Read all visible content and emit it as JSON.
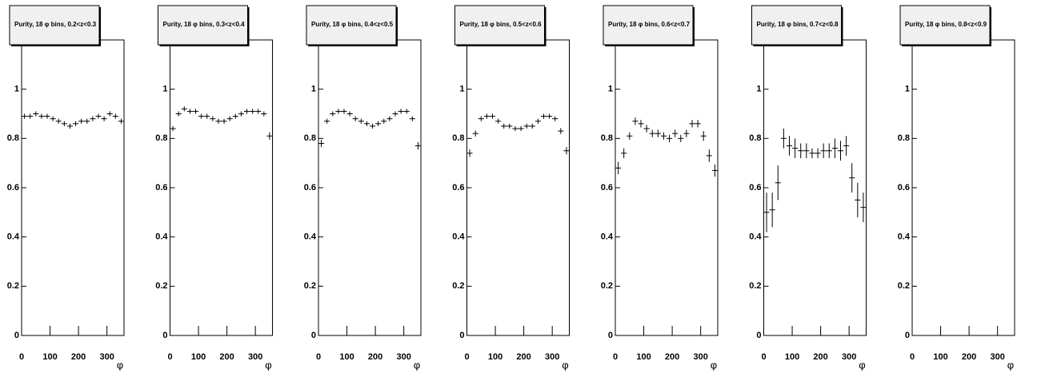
{
  "chart_data": [
    {
      "type": "errorbar",
      "title": "Purity, 18 φ bins, 0.2<z<0.3",
      "xlabel": "φ",
      "x": [
        10,
        30,
        50,
        70,
        90,
        110,
        130,
        150,
        170,
        190,
        210,
        230,
        250,
        270,
        290,
        310,
        330,
        350
      ],
      "values": [
        0.89,
        0.89,
        0.9,
        0.89,
        0.89,
        0.88,
        0.87,
        0.86,
        0.85,
        0.86,
        0.87,
        0.87,
        0.88,
        0.89,
        0.88,
        0.9,
        0.89,
        0.87
      ],
      "errors": [
        0.01,
        0.01,
        0.01,
        0.01,
        0.01,
        0.01,
        0.01,
        0.01,
        0.01,
        0.01,
        0.01,
        0.01,
        0.01,
        0.01,
        0.01,
        0.01,
        0.01,
        0.01
      ],
      "xlim": [
        0,
        360
      ],
      "ylim": [
        0,
        1.2
      ],
      "xticks": [
        0,
        100,
        200,
        300
      ],
      "yticks": [
        0,
        0.2,
        0.4,
        0.6,
        0.8,
        1
      ]
    },
    {
      "type": "errorbar",
      "title": "Purity, 18 φ bins, 0.3<z<0.4",
      "xlabel": "φ",
      "x": [
        10,
        30,
        50,
        70,
        90,
        110,
        130,
        150,
        170,
        190,
        210,
        230,
        250,
        270,
        290,
        310,
        330,
        350
      ],
      "values": [
        0.84,
        0.9,
        0.92,
        0.91,
        0.91,
        0.89,
        0.89,
        0.88,
        0.87,
        0.87,
        0.88,
        0.89,
        0.9,
        0.91,
        0.91,
        0.91,
        0.9,
        0.81
      ],
      "errors": [
        0.01,
        0.01,
        0.01,
        0.01,
        0.01,
        0.01,
        0.01,
        0.01,
        0.01,
        0.01,
        0.01,
        0.01,
        0.01,
        0.01,
        0.01,
        0.01,
        0.01,
        0.015
      ],
      "xlim": [
        0,
        360
      ],
      "ylim": [
        0,
        1.2
      ],
      "xticks": [
        0,
        100,
        200,
        300
      ],
      "yticks": [
        0,
        0.2,
        0.4,
        0.6,
        0.8,
        1
      ]
    },
    {
      "type": "errorbar",
      "title": "Purity, 18 φ bins, 0.4<z<0.5",
      "xlabel": "φ",
      "x": [
        10,
        30,
        50,
        70,
        90,
        110,
        130,
        150,
        170,
        190,
        210,
        230,
        250,
        270,
        290,
        310,
        330,
        350
      ],
      "values": [
        0.78,
        0.87,
        0.9,
        0.91,
        0.91,
        0.9,
        0.88,
        0.87,
        0.86,
        0.85,
        0.86,
        0.87,
        0.88,
        0.9,
        0.91,
        0.91,
        0.88,
        0.77
      ],
      "errors": [
        0.015,
        0.01,
        0.01,
        0.01,
        0.01,
        0.01,
        0.01,
        0.01,
        0.01,
        0.01,
        0.01,
        0.01,
        0.01,
        0.01,
        0.01,
        0.01,
        0.01,
        0.015
      ],
      "xlim": [
        0,
        360
      ],
      "ylim": [
        0,
        1.2
      ],
      "xticks": [
        0,
        100,
        200,
        300
      ],
      "yticks": [
        0,
        0.2,
        0.4,
        0.6,
        0.8,
        1
      ]
    },
    {
      "type": "errorbar",
      "title": "Purity, 18 φ bins, 0.5<z<0.6",
      "xlabel": "φ",
      "x": [
        10,
        30,
        50,
        70,
        90,
        110,
        130,
        150,
        170,
        190,
        210,
        230,
        250,
        270,
        290,
        310,
        330,
        350
      ],
      "values": [
        0.74,
        0.82,
        0.88,
        0.89,
        0.89,
        0.87,
        0.85,
        0.85,
        0.84,
        0.84,
        0.85,
        0.85,
        0.87,
        0.89,
        0.89,
        0.88,
        0.83,
        0.75
      ],
      "errors": [
        0.015,
        0.012,
        0.01,
        0.01,
        0.01,
        0.01,
        0.01,
        0.01,
        0.01,
        0.01,
        0.01,
        0.01,
        0.01,
        0.01,
        0.01,
        0.01,
        0.012,
        0.015
      ],
      "xlim": [
        0,
        360
      ],
      "ylim": [
        0,
        1.2
      ],
      "xticks": [
        0,
        100,
        200,
        300
      ],
      "yticks": [
        0,
        0.2,
        0.4,
        0.6,
        0.8,
        1
      ]
    },
    {
      "type": "errorbar",
      "title": "Purity, 18 φ bins, 0.6<z<0.7",
      "xlabel": "φ",
      "x": [
        10,
        30,
        50,
        70,
        90,
        110,
        130,
        150,
        170,
        190,
        210,
        230,
        250,
        270,
        290,
        310,
        330,
        350
      ],
      "values": [
        0.68,
        0.74,
        0.81,
        0.87,
        0.86,
        0.84,
        0.82,
        0.82,
        0.81,
        0.8,
        0.82,
        0.8,
        0.82,
        0.86,
        0.86,
        0.81,
        0.73,
        0.67
      ],
      "errors": [
        0.025,
        0.02,
        0.015,
        0.015,
        0.015,
        0.015,
        0.015,
        0.015,
        0.015,
        0.015,
        0.015,
        0.015,
        0.015,
        0.015,
        0.015,
        0.02,
        0.025,
        0.025
      ],
      "xlim": [
        0,
        360
      ],
      "ylim": [
        0,
        1.2
      ],
      "xticks": [
        0,
        100,
        200,
        300
      ],
      "yticks": [
        0,
        0.2,
        0.4,
        0.6,
        0.8,
        1
      ]
    },
    {
      "type": "errorbar",
      "title": "Purity, 18 φ bins, 0.7<z<0.8",
      "xlabel": "φ",
      "x": [
        10,
        30,
        50,
        70,
        90,
        110,
        130,
        150,
        170,
        190,
        210,
        230,
        250,
        270,
        290,
        310,
        330,
        350
      ],
      "values": [
        0.5,
        0.51,
        0.62,
        0.8,
        0.77,
        0.76,
        0.75,
        0.75,
        0.74,
        0.74,
        0.75,
        0.75,
        0.76,
        0.75,
        0.77,
        0.64,
        0.55,
        0.52
      ],
      "errors": [
        0.08,
        0.07,
        0.07,
        0.04,
        0.04,
        0.04,
        0.03,
        0.03,
        0.02,
        0.02,
        0.03,
        0.03,
        0.04,
        0.04,
        0.04,
        0.06,
        0.07,
        0.06
      ],
      "xlim": [
        0,
        360
      ],
      "ylim": [
        0,
        1.2
      ],
      "xticks": [
        0,
        100,
        200,
        300
      ],
      "yticks": [
        0,
        0.2,
        0.4,
        0.6,
        0.8,
        1
      ]
    },
    {
      "type": "errorbar",
      "title": "Purity, 18 φ bins, 0.8<z<0.9",
      "xlabel": "φ",
      "x": [],
      "values": [],
      "errors": [],
      "xlim": [
        0,
        360
      ],
      "ylim": [
        0,
        1.2
      ],
      "xticks": [
        0,
        100,
        200,
        300
      ],
      "yticks": [
        0,
        0.2,
        0.4,
        0.6,
        0.8,
        1
      ]
    }
  ]
}
